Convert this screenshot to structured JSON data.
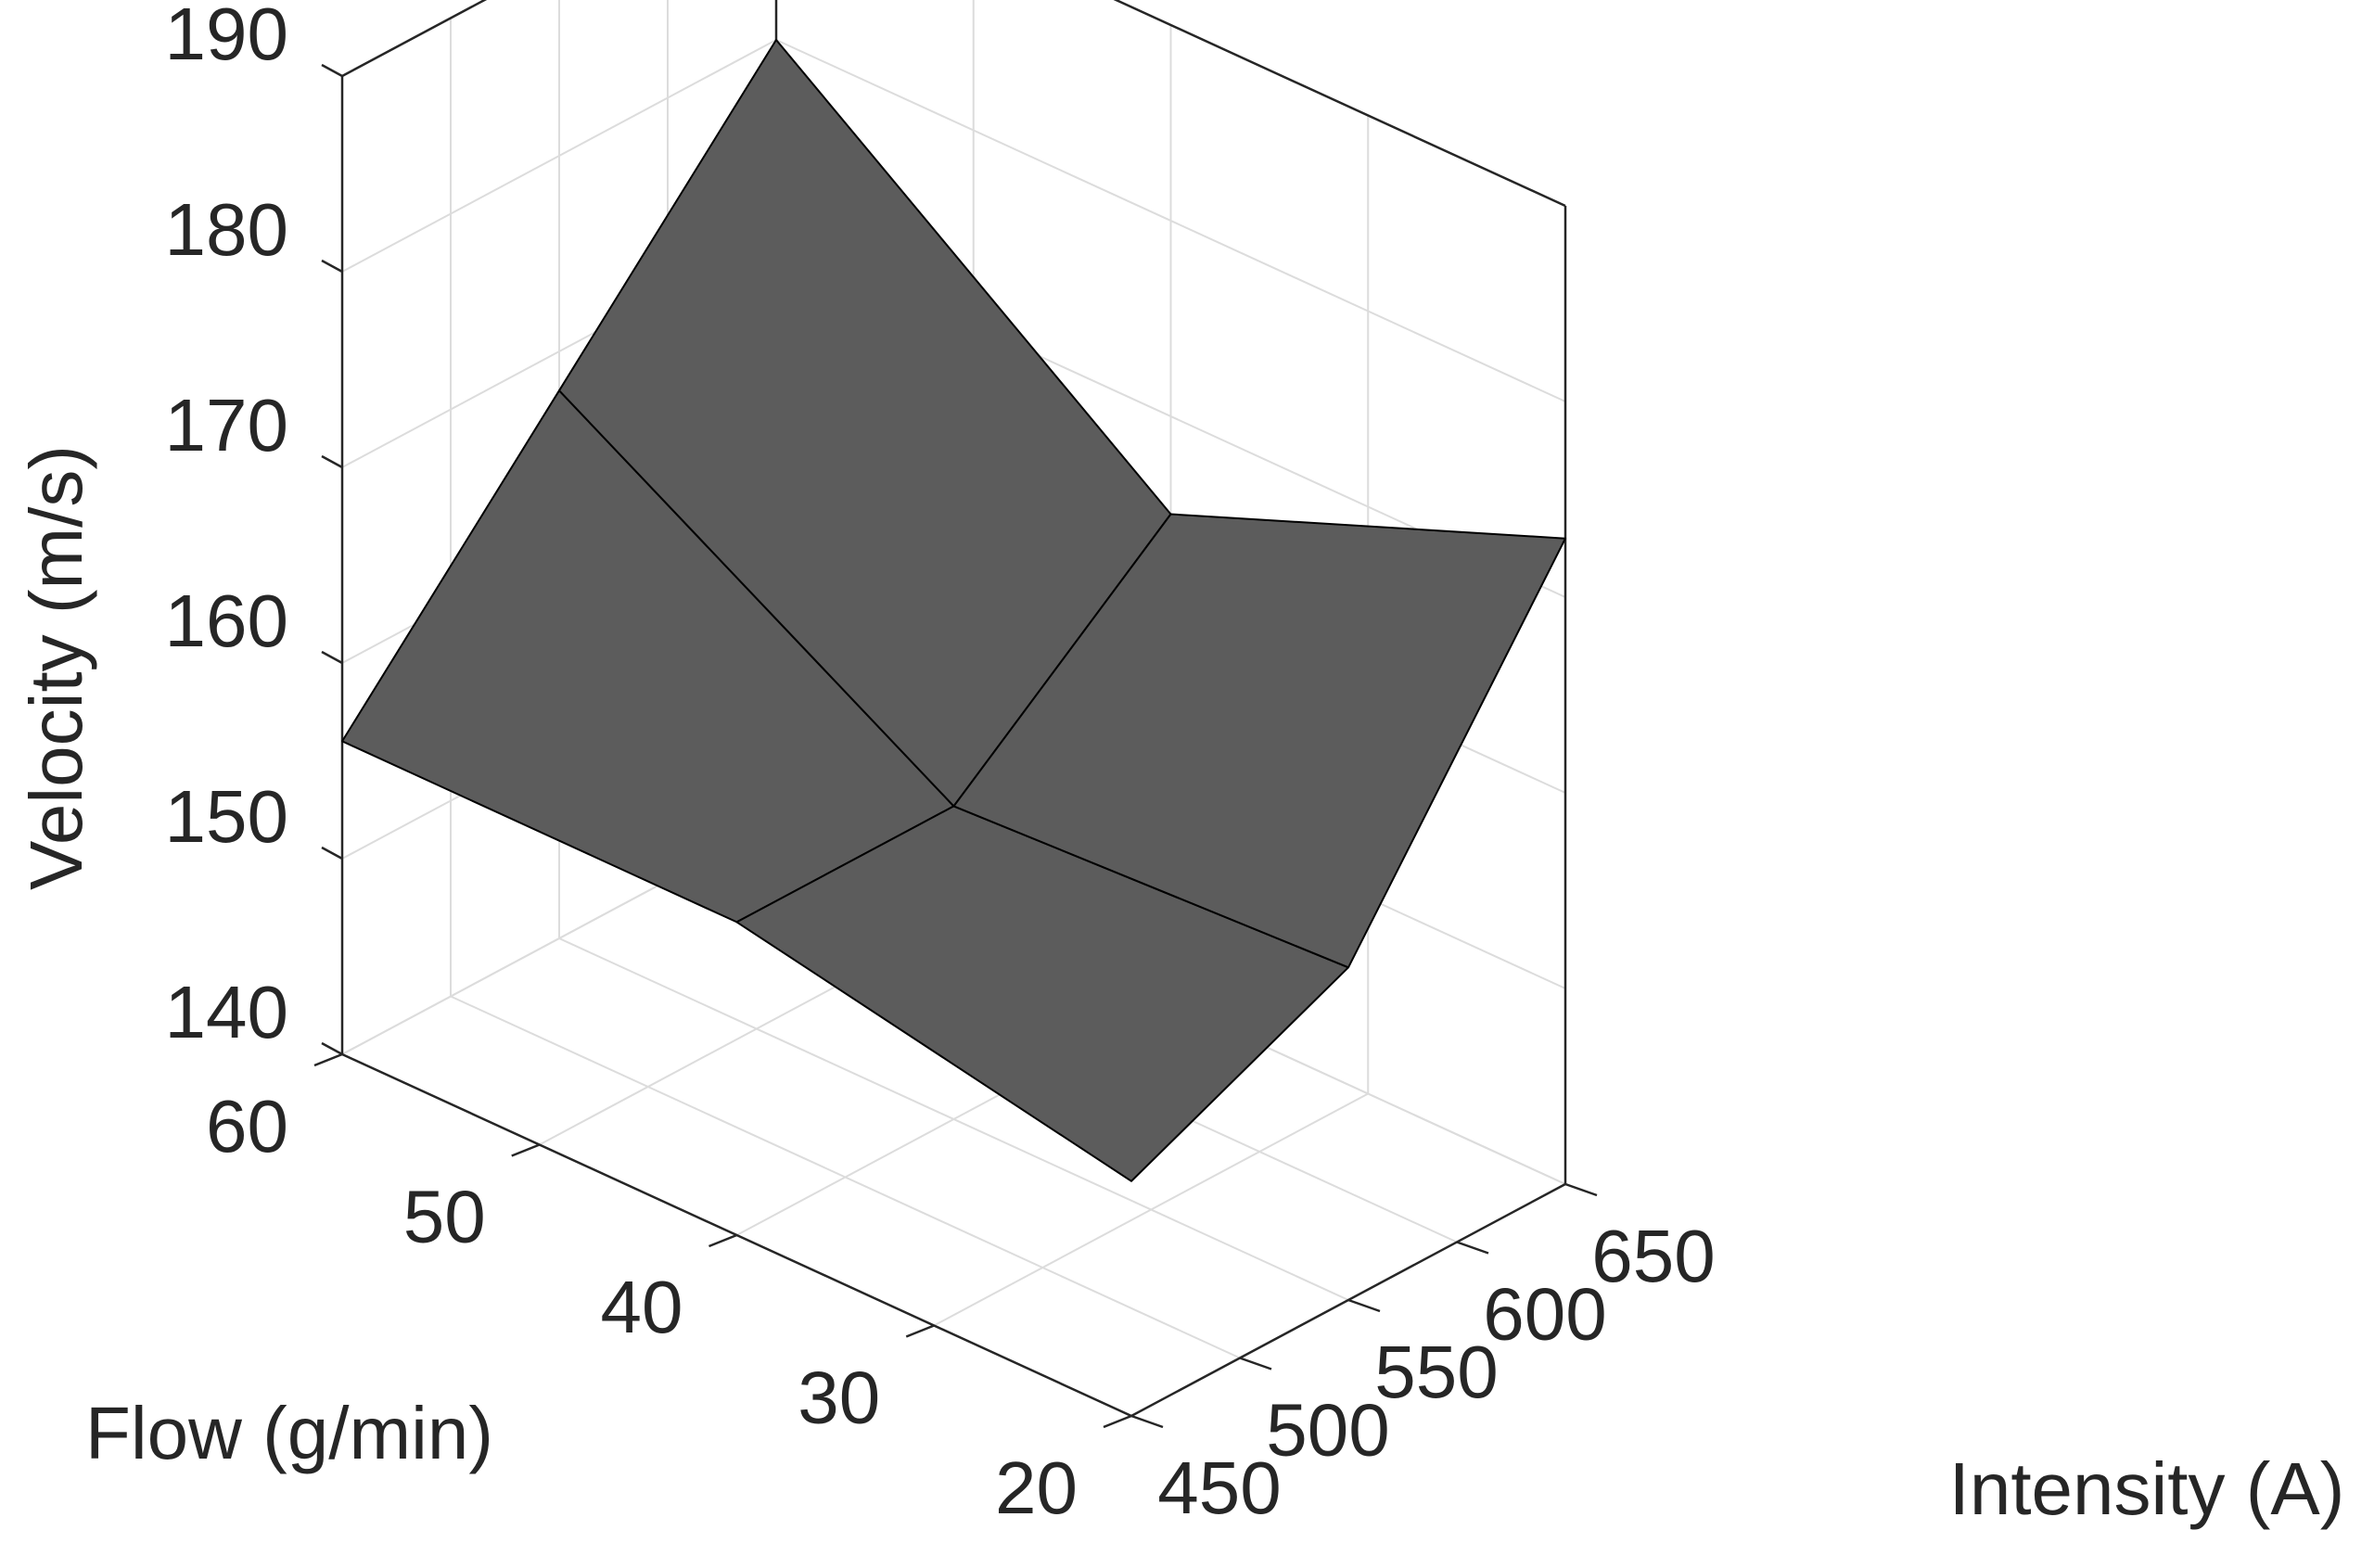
{
  "chart_data": {
    "type": "surface",
    "x": {
      "label": "Intensity (A)",
      "ticks": [
        450,
        500,
        550,
        600,
        650
      ],
      "range": [
        450,
        650
      ]
    },
    "y": {
      "label": "Flow (g/min)",
      "ticks": [
        20,
        30,
        40,
        50,
        60
      ],
      "range": [
        20,
        60
      ]
    },
    "z": {
      "label": "Velocity (m/s)",
      "ticks": [
        140,
        150,
        160,
        170,
        180,
        190
      ],
      "range": [
        140,
        190
      ]
    },
    "grid": true,
    "surface": {
      "x": [
        450,
        550,
        650
      ],
      "y": [
        20,
        40,
        60
      ],
      "z": [
        [
          152,
          157,
          173
        ],
        [
          156,
          156,
          165
        ],
        [
          156,
          168,
          180
        ]
      ]
    },
    "surface_color": "#5c5c5c",
    "edge_color": "#000000"
  }
}
